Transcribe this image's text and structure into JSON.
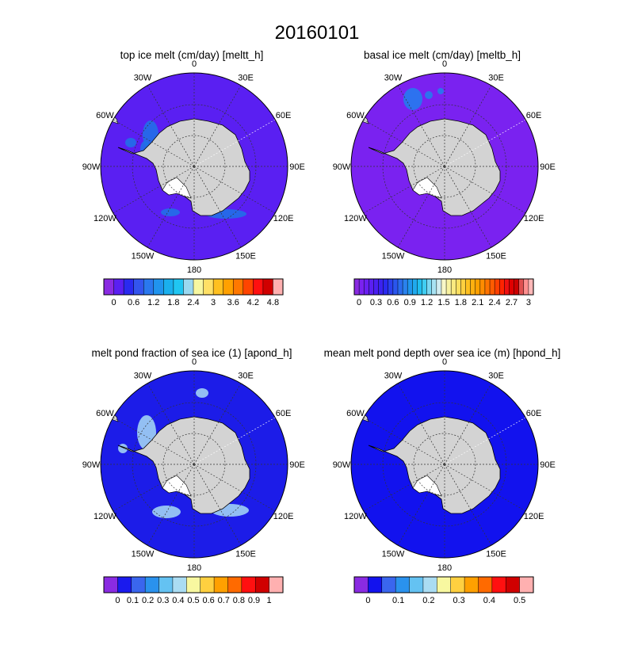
{
  "figure_title": "20160101",
  "panels": [
    {
      "title": "top ice melt (cm/day)  [meltt_h]",
      "ocean_color": "#5a1ff2",
      "patch_color": "#1f74e8",
      "colorbar": {
        "colors": [
          "#8a2be2",
          "#5a1ff2",
          "#2a2af0",
          "#3355ee",
          "#2a78ee",
          "#2094ee",
          "#1ab0ee",
          "#20c6f2",
          "#9ad8f0",
          "#f7f7a0",
          "#ffe066",
          "#ffc020",
          "#ffa000",
          "#ff7800",
          "#ff4400",
          "#ff1010",
          "#d00000",
          "#ffb0b0"
        ],
        "labels": [
          "0",
          "0.6",
          "1.2",
          "1.8",
          "2.4",
          "3",
          "3.6",
          "4.2",
          "4.8"
        ]
      }
    },
    {
      "title": "basal ice melt (cm/day)  [meltb_h]",
      "ocean_color": "#7a22f0",
      "patch_color": "#2080ee",
      "colorbar": {
        "colors": [
          "#8a2be2",
          "#7a22f0",
          "#6a1ff2",
          "#5a1ff2",
          "#4a1ff2",
          "#3a22f0",
          "#2a2af0",
          "#2a40ee",
          "#2a56ee",
          "#2a6cee",
          "#2a82ee",
          "#2096ee",
          "#20aaee",
          "#20bef0",
          "#40cef2",
          "#7ad8f2",
          "#a8e2f2",
          "#d2ecf0",
          "#f8f8c8",
          "#f8f2a0",
          "#faea80",
          "#fce060",
          "#ffd040",
          "#ffc020",
          "#ffb010",
          "#ffa000",
          "#ff8c00",
          "#ff7400",
          "#ff5c00",
          "#ff4000",
          "#ff2400",
          "#f01010",
          "#e00000",
          "#cc0000",
          "#e05050",
          "#ff9090",
          "#ffb8b8"
        ],
        "labels": [
          "0",
          "0.3",
          "0.6",
          "0.9",
          "1.2",
          "1.5",
          "1.8",
          "2.1",
          "2.4",
          "2.7",
          "3"
        ]
      }
    },
    {
      "title": "melt pond fraction of sea ice (1)  [apond_h]",
      "ocean_color": "#1c1ce8",
      "patch_color": "#a8dcf5",
      "colorbar": {
        "colors": [
          "#8a2be2",
          "#1a1aee",
          "#3a66ee",
          "#2a92ee",
          "#64c2f2",
          "#aadcf2",
          "#f8f8a0",
          "#ffd040",
          "#ffa000",
          "#ff6a00",
          "#ff1010",
          "#d00000",
          "#ffb0b0"
        ],
        "labels": [
          "0",
          "0.1",
          "0.2",
          "0.3",
          "0.4",
          "0.5",
          "0.6",
          "0.7",
          "0.8",
          "0.9",
          "1"
        ]
      }
    },
    {
      "title": "mean melt pond depth over sea ice (m)  [hpond_h]",
      "ocean_color": "#1212ee",
      "patch_color": "#2a5ae8",
      "colorbar": {
        "colors": [
          "#8a2be2",
          "#1212ee",
          "#3a66ee",
          "#2a92ee",
          "#64c2f2",
          "#aadcf2",
          "#f8f8a0",
          "#ffd040",
          "#ffa000",
          "#ff6a00",
          "#ff1010",
          "#d00000",
          "#ffb0b0"
        ],
        "labels": [
          "0",
          "0.1",
          "0.2",
          "0.3",
          "0.4",
          "0.5"
        ]
      }
    }
  ],
  "map_labels": {
    "meridians": [
      "0",
      "30E",
      "60E",
      "90E",
      "120E",
      "150E",
      "180",
      "150W",
      "120W",
      "90W",
      "60W",
      "30W"
    ]
  },
  "land_color": "#d3d3d3"
}
